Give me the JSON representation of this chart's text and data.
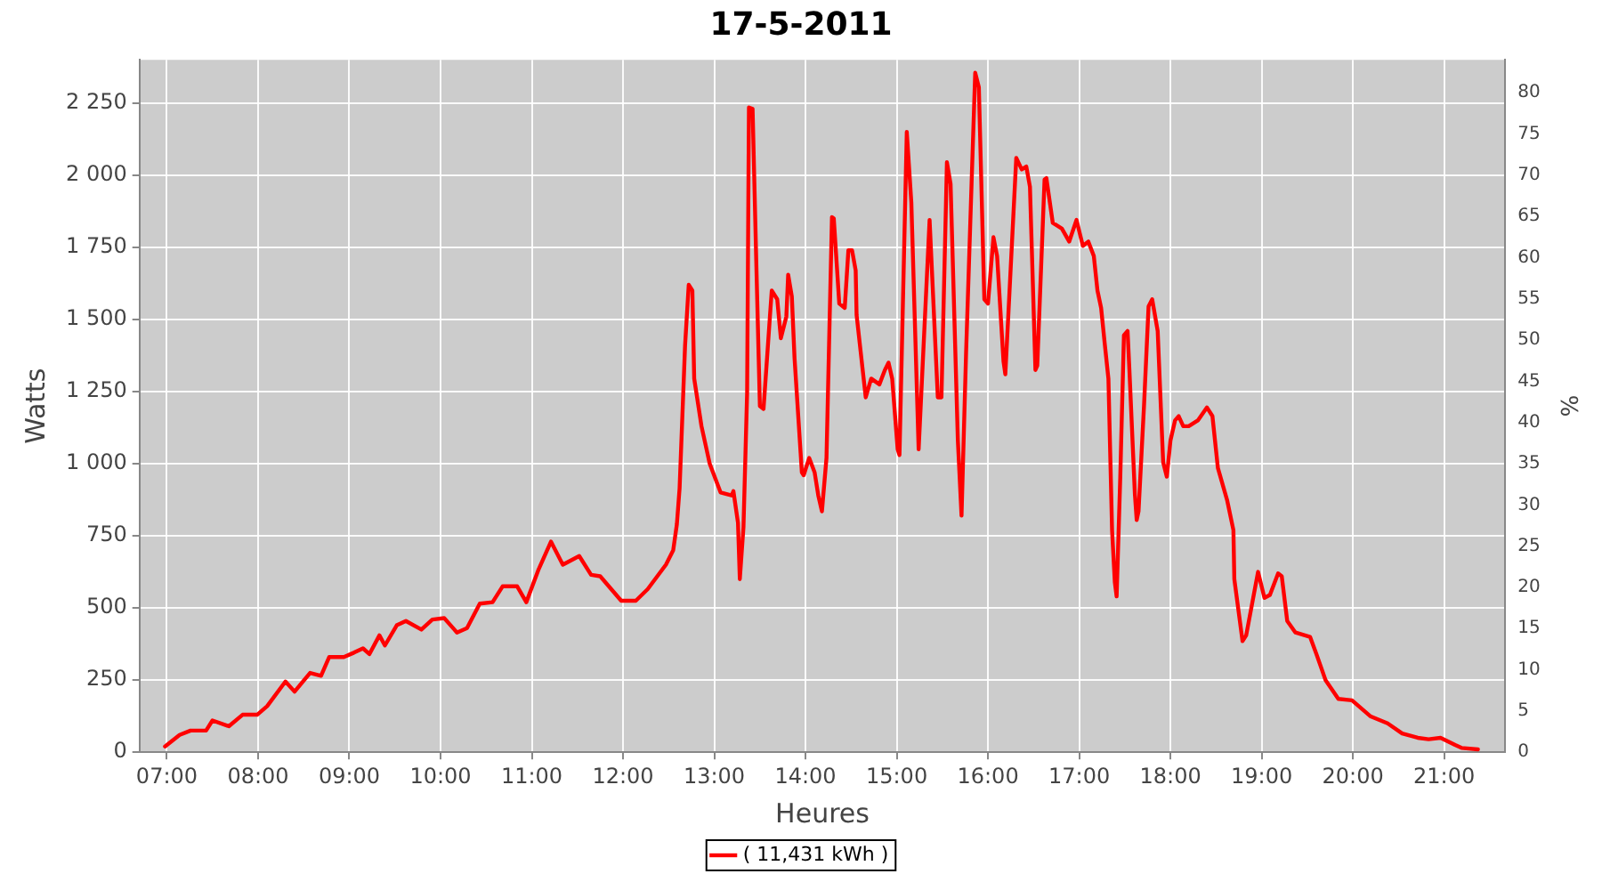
{
  "chart_data": {
    "type": "line",
    "title": "17-5-2011",
    "xlabel": "Heures",
    "ylabel": "Watts",
    "y2label": "%",
    "xlim": [
      6.7,
      21.67
    ],
    "xticks": [
      {
        "value": 7,
        "label": "07:00"
      },
      {
        "value": 8,
        "label": "08:00"
      },
      {
        "value": 9,
        "label": "09:00"
      },
      {
        "value": 10,
        "label": "10:00"
      },
      {
        "value": 11,
        "label": "11:00"
      },
      {
        "value": 12,
        "label": "12:00"
      },
      {
        "value": 13,
        "label": "13:00"
      },
      {
        "value": 14,
        "label": "14:00"
      },
      {
        "value": 15,
        "label": "15:00"
      },
      {
        "value": 16,
        "label": "16:00"
      },
      {
        "value": 17,
        "label": "17:00"
      },
      {
        "value": 18,
        "label": "18:00"
      },
      {
        "value": 19,
        "label": "19:00"
      },
      {
        "value": 20,
        "label": "20:00"
      },
      {
        "value": 21,
        "label": "21:00"
      }
    ],
    "ylim": [
      0,
      2400
    ],
    "yticks": [
      0,
      250,
      500,
      750,
      {
        "value": 1000,
        "label": "1 000"
      },
      {
        "value": 1250,
        "label": "1 250"
      },
      {
        "value": 1500,
        "label": "1 500"
      },
      {
        "value": 1750,
        "label": "1 750"
      },
      {
        "value": 2000,
        "label": "2 000"
      },
      {
        "value": 2250,
        "label": "2 250"
      }
    ],
    "y2lim": [
      0,
      84
    ],
    "y2ticks": [
      0,
      5,
      10,
      15,
      20,
      25,
      30,
      35,
      40,
      45,
      50,
      55,
      60,
      65,
      70,
      75,
      80
    ],
    "grid": true,
    "legend": "bottom",
    "marker": "none",
    "line_style": "solid",
    "series": [
      {
        "name": "( 11,431 kWh )",
        "color": "#ff0000",
        "x": [
          6.98,
          7.14,
          7.26,
          7.43,
          7.5,
          7.68,
          7.83,
          7.99,
          8.1,
          8.3,
          8.4,
          8.57,
          8.69,
          8.78,
          8.94,
          9.05,
          9.15,
          9.22,
          9.33,
          9.39,
          9.52,
          9.62,
          9.79,
          9.91,
          10.04,
          10.18,
          10.29,
          10.43,
          10.57,
          10.68,
          10.84,
          10.94,
          11.07,
          11.21,
          11.34,
          11.52,
          11.65,
          11.75,
          11.98,
          12.14,
          12.27,
          12.47,
          12.55,
          12.59,
          12.62,
          12.68,
          12.72,
          12.76,
          12.78,
          12.86,
          12.95,
          13.07,
          13.19,
          13.21,
          13.26,
          13.28,
          13.32,
          13.36,
          13.38,
          13.42,
          13.46,
          13.5,
          13.54,
          13.61,
          13.63,
          13.69,
          13.73,
          13.79,
          13.81,
          13.85,
          13.88,
          13.96,
          13.98,
          14.04,
          14.1,
          14.14,
          14.18,
          14.23,
          14.29,
          14.31,
          14.37,
          14.43,
          14.47,
          14.51,
          14.55,
          14.56,
          14.66,
          14.72,
          14.81,
          14.87,
          14.91,
          14.95,
          15.01,
          15.03,
          15.11,
          15.16,
          15.24,
          15.36,
          15.45,
          15.49,
          15.55,
          15.59,
          15.67,
          15.71,
          15.76,
          15.82,
          15.86,
          15.9,
          15.96,
          16.0,
          16.06,
          16.1,
          16.17,
          16.19,
          16.31,
          16.37,
          16.42,
          16.46,
          16.52,
          16.54,
          16.62,
          16.64,
          16.71,
          16.81,
          16.89,
          16.97,
          17.04,
          17.1,
          17.16,
          17.2,
          17.24,
          17.28,
          17.32,
          17.36,
          17.39,
          17.41,
          17.45,
          17.49,
          17.53,
          17.55,
          17.61,
          17.63,
          17.65,
          17.71,
          17.76,
          17.8,
          17.86,
          17.92,
          17.96,
          18.0,
          18.05,
          18.09,
          18.14,
          18.2,
          18.3,
          18.4,
          18.46,
          18.52,
          18.62,
          18.69,
          18.7,
          18.79,
          18.83,
          18.96,
          19.03,
          19.09,
          19.18,
          19.22,
          19.28,
          19.37,
          19.53,
          19.6,
          19.7,
          19.84,
          19.99,
          20.19,
          20.38,
          20.54,
          20.71,
          20.83,
          20.96,
          21.12,
          21.19,
          21.37
        ],
        "values": [
          20,
          60,
          75,
          75,
          110,
          90,
          130,
          130,
          160,
          245,
          210,
          275,
          265,
          330,
          330,
          345,
          360,
          340,
          405,
          370,
          440,
          455,
          425,
          460,
          465,
          415,
          430,
          515,
          520,
          575,
          575,
          520,
          630,
          730,
          650,
          680,
          615,
          610,
          525,
          525,
          565,
          650,
          700,
          790,
          915,
          1410,
          1620,
          1600,
          1295,
          1130,
          1000,
          900,
          890,
          905,
          795,
          600,
          780,
          1245,
          2235,
          2230,
          1705,
          1200,
          1190,
          1510,
          1600,
          1570,
          1435,
          1510,
          1655,
          1580,
          1365,
          970,
          960,
          1020,
          970,
          890,
          835,
          1020,
          1855,
          1850,
          1555,
          1540,
          1740,
          1740,
          1670,
          1515,
          1230,
          1295,
          1275,
          1325,
          1350,
          1295,
          1050,
          1030,
          2150,
          1905,
          1050,
          1845,
          1230,
          1230,
          2045,
          1970,
          1080,
          820,
          1385,
          1970,
          2355,
          2305,
          1570,
          1555,
          1785,
          1720,
          1355,
          1310,
          2060,
          2020,
          2030,
          1960,
          1325,
          1340,
          1985,
          1990,
          1835,
          1815,
          1770,
          1845,
          1755,
          1770,
          1720,
          1600,
          1540,
          1415,
          1295,
          770,
          590,
          540,
          955,
          1445,
          1460,
          1325,
          895,
          805,
          835,
          1200,
          1545,
          1570,
          1460,
          1005,
          955,
          1080,
          1150,
          1165,
          1130,
          1130,
          1150,
          1195,
          1165,
          985,
          875,
          770,
          600,
          385,
          405,
          625,
          535,
          545,
          620,
          610,
          455,
          415,
          400,
          340,
          250,
          185,
          180,
          125,
          100,
          65,
          50,
          45,
          50,
          25,
          15,
          10
        ]
      }
    ]
  }
}
